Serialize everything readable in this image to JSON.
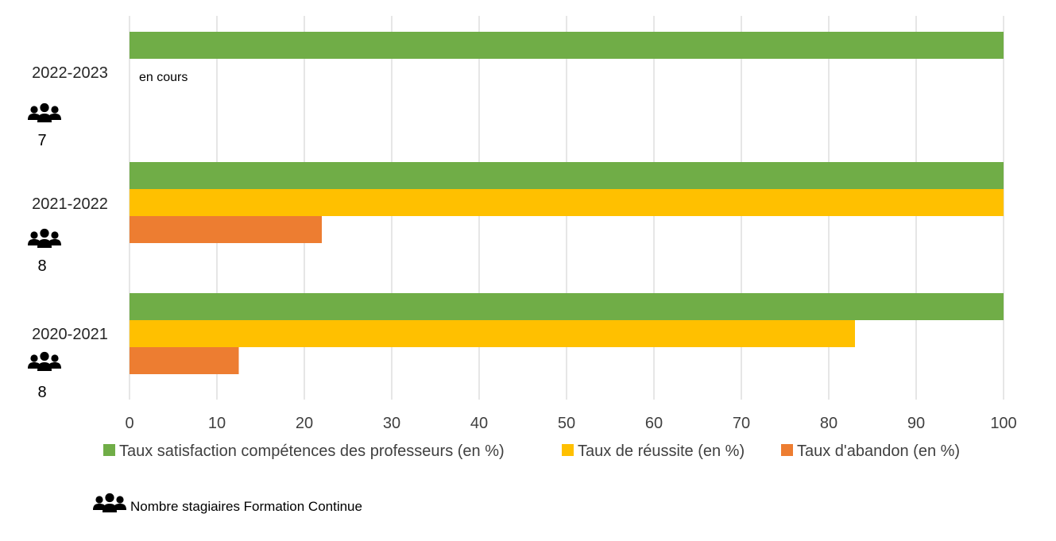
{
  "chart_data": {
    "type": "bar",
    "orientation": "horizontal",
    "categories": [
      "2022-2023",
      "2021-2022",
      "2020-2021"
    ],
    "series": [
      {
        "name": "Taux satisfaction compétences des professeurs (en %)",
        "color": "#70AD47",
        "values": [
          100,
          100,
          100
        ]
      },
      {
        "name": "Taux de réussite (en %)",
        "color": "#FFC000",
        "values": [
          null,
          100,
          83
        ]
      },
      {
        "name": "Taux d'abandon (en %)",
        "color": "#ED7D31",
        "values": [
          null,
          22,
          12.5
        ]
      }
    ],
    "xlim": [
      0,
      100
    ],
    "x_ticks": [
      0,
      10,
      20,
      30,
      40,
      50,
      60,
      70,
      80,
      90,
      100
    ],
    "grid": "vertical",
    "legend_position": "bottom",
    "participant_counts": [
      "7",
      "8",
      "8"
    ],
    "participant_icon": "group-people-icon",
    "annotations": [
      {
        "category": "2022-2023",
        "text": "en cours"
      }
    ],
    "footnote": {
      "icon": "group-people-icon",
      "text": "Nombre stagiaires Formation Continue"
    }
  }
}
